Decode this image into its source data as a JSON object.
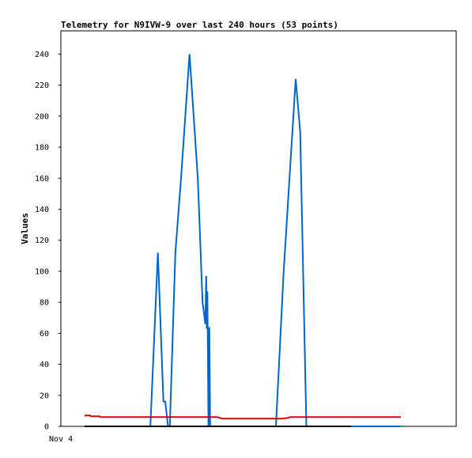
{
  "chart_data": {
    "type": "line",
    "title": "Telemetry for N9IVW-9 over last 240 hours (53 points)",
    "ylabel": "Values",
    "xlabel": "",
    "x_tick_labels": [
      "Nov 4"
    ],
    "ylim": [
      0,
      255
    ],
    "xlim": [
      0,
      240
    ],
    "yticks": [
      0,
      20,
      40,
      60,
      80,
      100,
      120,
      140,
      160,
      180,
      200,
      220,
      240
    ],
    "grid": false,
    "legend": "none",
    "series": [
      {
        "color": "#0066cc",
        "x": [
          0,
          49.9,
          55.6,
          59.8,
          61.2,
          63.3,
          64.7,
          68.9,
          73.2,
          79.6,
          85.9,
          89.5,
          91.6,
          92.3,
          92.7,
          93.2,
          94.0,
          94.7,
          95.3,
          145.2,
          151.1,
          160.2,
          163.6,
          168.3,
          186.2,
          202.0,
          240
        ],
        "values": [
          0,
          0,
          112,
          16,
          16,
          0,
          0,
          112,
          160,
          240,
          160,
          80,
          66,
          97,
          63,
          87,
          0,
          64,
          0,
          0,
          100,
          224,
          190,
          0,
          0,
          0,
          0
        ]
      },
      {
        "color": "#dd0000",
        "x": [
          0,
          4.2,
          4.9,
          6.3,
          11.3,
          12.0,
          100.4,
          104.6,
          105.3,
          150.0,
          154.3,
          156.4,
          202.0,
          240
        ],
        "values": [
          7,
          7,
          6.5,
          6.5,
          6.5,
          6,
          6,
          5,
          5,
          5,
          5.5,
          6,
          6,
          6
        ]
      },
      {
        "color": "#000000",
        "x": [
          0,
          202.0
        ],
        "values": [
          0,
          0
        ]
      }
    ]
  }
}
